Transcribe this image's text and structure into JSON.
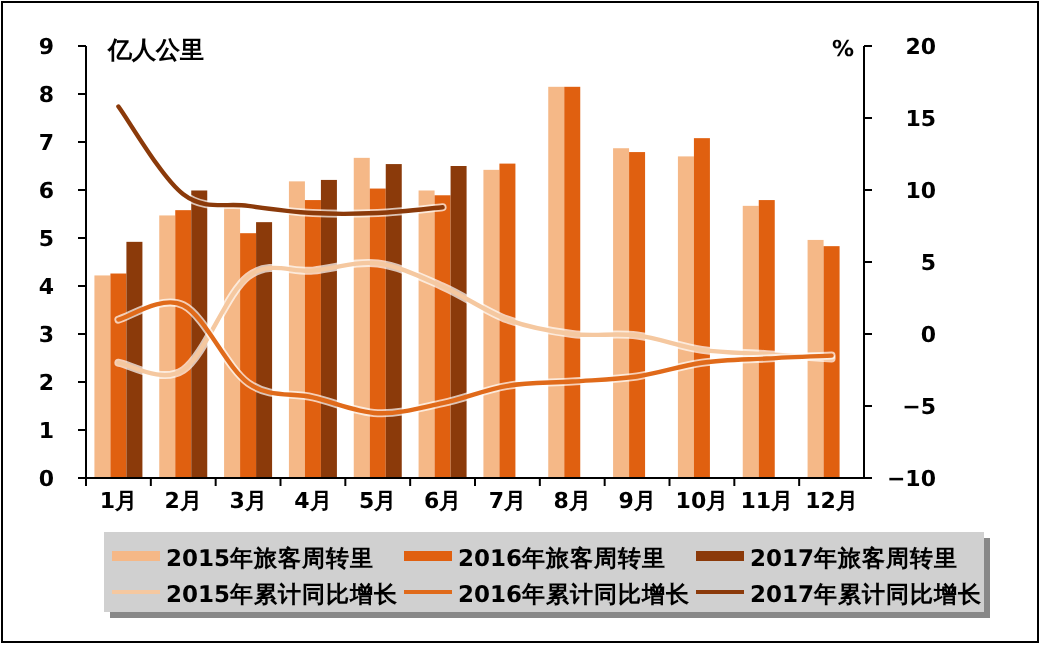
{
  "chart_data": {
    "type": "bar",
    "ylabel": "亿人公里",
    "y2label": "%",
    "categories": [
      "1月",
      "2月",
      "3月",
      "4月",
      "5月",
      "6月",
      "7月",
      "8月",
      "9月",
      "10月",
      "11月",
      "12月"
    ],
    "ylim": [
      0,
      9
    ],
    "yticks": [
      0,
      1,
      2,
      3,
      4,
      5,
      6,
      7,
      8,
      9
    ],
    "y2lim": [
      -10,
      20
    ],
    "y2ticks": [
      -10,
      -5,
      0,
      5,
      10,
      15,
      20
    ],
    "legend": "bottom",
    "series": [
      {
        "name": "2015年旅客周转里",
        "color": "#f5b887",
        "values": [
          4.22,
          5.47,
          5.72,
          6.18,
          6.67,
          5.99,
          6.42,
          8.15,
          6.87,
          6.7,
          5.67,
          4.96
        ]
      },
      {
        "name": "2016年旅客周转里",
        "color": "#e06010",
        "values": [
          4.26,
          5.58,
          5.1,
          5.79,
          6.03,
          5.89,
          6.55,
          8.15,
          6.79,
          7.08,
          5.79,
          4.83
        ]
      },
      {
        "name": "2017年旅客周转里",
        "color": "#8b3a0a",
        "values": [
          4.92,
          5.99,
          5.33,
          6.21,
          6.54,
          6.5,
          null,
          null,
          null,
          null,
          null,
          null
        ]
      },
      {
        "name": "2015年累计同比增长",
        "type": "line",
        "axis": "y2",
        "color": "#f5c8a0",
        "values": [
          -2.0,
          -2.5,
          4.0,
          4.4,
          4.9,
          3.3,
          1.0,
          0,
          -0.1,
          -1.1,
          -1.4,
          -1.7
        ]
      },
      {
        "name": "2016年累计同比增长",
        "type": "line",
        "axis": "y2",
        "color": "#e06a1a",
        "values": [
          1.0,
          2.0,
          -3.4,
          -4.4,
          -5.5,
          -4.8,
          -3.6,
          -3.3,
          -2.95,
          -2.0,
          -1.7,
          -1.5
        ]
      },
      {
        "name": "2017年累计同比增长",
        "type": "line",
        "axis": "y2",
        "color": "#8b3a0a",
        "values": [
          15.8,
          9.7,
          8.9,
          8.4,
          8.4,
          8.8,
          null,
          null,
          null,
          null,
          null,
          null
        ]
      }
    ]
  }
}
